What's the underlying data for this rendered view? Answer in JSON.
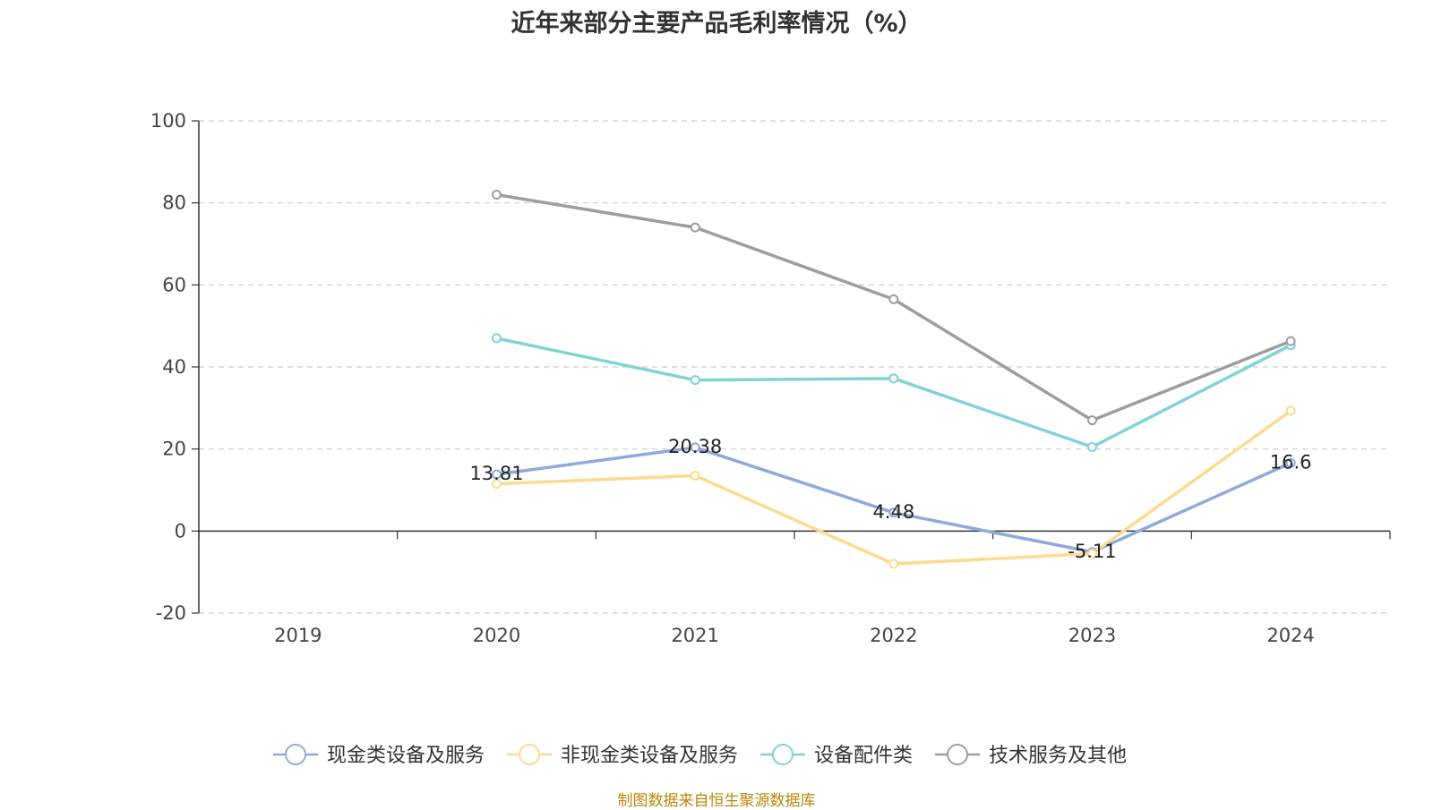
{
  "chart_data": {
    "type": "line",
    "title": "近年来部分主要产品毛利率情况（%）",
    "categories": [
      "2019",
      "2020",
      "2021",
      "2022",
      "2023",
      "2024"
    ],
    "ylim": [
      -20,
      100
    ],
    "yticks": [
      "100",
      "80",
      "60",
      "40",
      "20",
      "0",
      "-20"
    ],
    "grid": true,
    "legend_position": "bottom",
    "series": [
      {
        "name": "现金类设备及服务",
        "color": "#8eaadb",
        "values": [
          null,
          13.81,
          20.38,
          4.48,
          -5.11,
          16.6
        ],
        "labels": [
          "",
          "13.81",
          "20.38",
          "4.48",
          "-5.11",
          "16.6"
        ]
      },
      {
        "name": "非现金类设备及服务",
        "color": "#ffd98e",
        "values": [
          null,
          11.5,
          13.5,
          -8.0,
          -5.5,
          29.3
        ],
        "labels": [
          "",
          "",
          "",
          "",
          "",
          ""
        ]
      },
      {
        "name": "设备配件类",
        "color": "#7fd3d8",
        "values": [
          null,
          47.0,
          36.8,
          37.2,
          20.5,
          45.3
        ],
        "labels": [
          "",
          "",
          "",
          "",
          "",
          ""
        ]
      },
      {
        "name": "技术服务及其他",
        "color": "#9e9e9e",
        "values": [
          null,
          82.0,
          74.0,
          56.5,
          27.0,
          46.3
        ],
        "labels": [
          "",
          "",
          "",
          "",
          "",
          ""
        ]
      }
    ]
  },
  "source_note": "制图数据来自恒生聚源数据库"
}
